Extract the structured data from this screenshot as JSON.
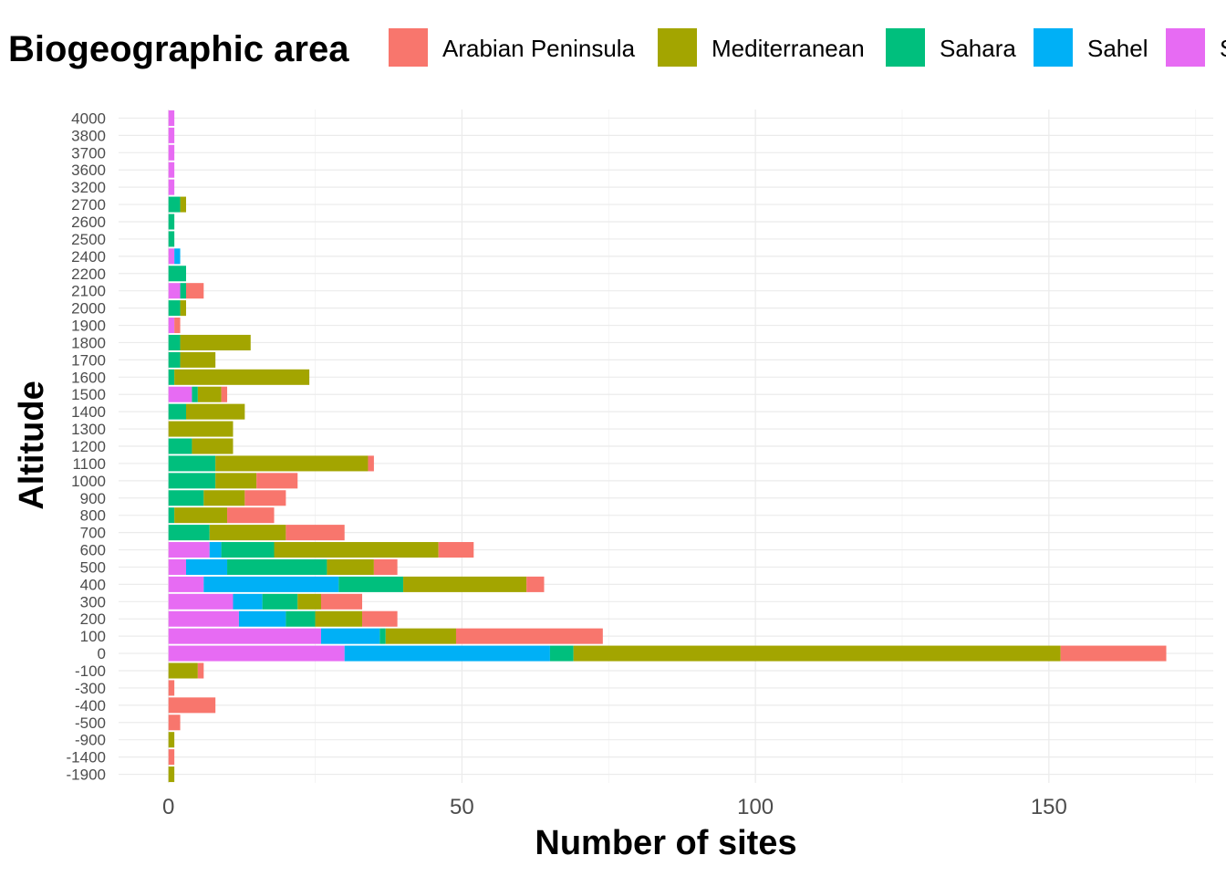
{
  "chart_data": {
    "type": "bar",
    "orientation": "horizontal",
    "stacked": true,
    "xlabel": "Number of sites",
    "ylabel": "Altitude",
    "xlim": [
      -8.5,
      178
    ],
    "x_ticks": [
      0,
      50,
      100,
      150
    ],
    "grid": true,
    "legend": {
      "title": "Biogeographic area",
      "placement": "top",
      "entries": [
        "Arabian Peninsula",
        "Mediterranean",
        "Sahara",
        "Sahel",
        "S"
      ]
    },
    "categories": [
      "-1900",
      "-1400",
      "-900",
      "-500",
      "-400",
      "-300",
      "-100",
      "0",
      "100",
      "200",
      "300",
      "400",
      "500",
      "600",
      "700",
      "800",
      "900",
      "1000",
      "1100",
      "1200",
      "1300",
      "1400",
      "1500",
      "1600",
      "1700",
      "1800",
      "1900",
      "2000",
      "2100",
      "2200",
      "2400",
      "2500",
      "2600",
      "2700",
      "3200",
      "3600",
      "3700",
      "3800",
      "4000"
    ],
    "stack_order": [
      "Sudanian",
      "Sahel",
      "Sahara",
      "Mediterranean",
      "Arabian Peninsula"
    ],
    "series": [
      {
        "name": "Sudanian",
        "color": "#E76BF3",
        "values": [
          0,
          0,
          0,
          0,
          0,
          0,
          0,
          30,
          26,
          12,
          11,
          6,
          3,
          7,
          0,
          0,
          0,
          0,
          0,
          0,
          0,
          0,
          4,
          0,
          0,
          0,
          1,
          0,
          2,
          0,
          1,
          0,
          0,
          0,
          1,
          1,
          1,
          1,
          1
        ]
      },
      {
        "name": "Sahel",
        "color": "#00B0F6",
        "values": [
          0,
          0,
          0,
          0,
          0,
          0,
          0,
          35,
          10,
          8,
          5,
          23,
          7,
          2,
          0,
          0,
          0,
          0,
          0,
          0,
          0,
          0,
          0,
          0,
          0,
          0,
          0,
          0,
          0,
          0,
          1,
          0,
          0,
          0,
          0,
          0,
          0,
          0,
          0
        ]
      },
      {
        "name": "Sahara",
        "color": "#00BF7D",
        "values": [
          0,
          0,
          0,
          0,
          0,
          0,
          0,
          4,
          1,
          5,
          6,
          11,
          17,
          9,
          7,
          1,
          6,
          8,
          8,
          4,
          0,
          3,
          1,
          1,
          2,
          2,
          0,
          2,
          1,
          3,
          0,
          1,
          1,
          2,
          0,
          0,
          0,
          0,
          0
        ]
      },
      {
        "name": "Mediterranean",
        "color": "#A3A500",
        "values": [
          1,
          0,
          1,
          0,
          0,
          0,
          5,
          83,
          12,
          8,
          4,
          21,
          8,
          28,
          13,
          9,
          7,
          7,
          26,
          7,
          11,
          10,
          4,
          23,
          6,
          12,
          0,
          1,
          0,
          0,
          0,
          0,
          0,
          1,
          0,
          0,
          0,
          0,
          0
        ]
      },
      {
        "name": "Arabian Peninsula",
        "color": "#F8766D",
        "values": [
          0,
          1,
          0,
          2,
          8,
          1,
          1,
          18,
          25,
          6,
          7,
          3,
          4,
          6,
          10,
          8,
          7,
          7,
          1,
          0,
          0,
          0,
          1,
          0,
          0,
          0,
          1,
          0,
          3,
          0,
          0,
          0,
          0,
          0,
          0,
          0,
          0,
          0,
          0
        ]
      }
    ]
  }
}
